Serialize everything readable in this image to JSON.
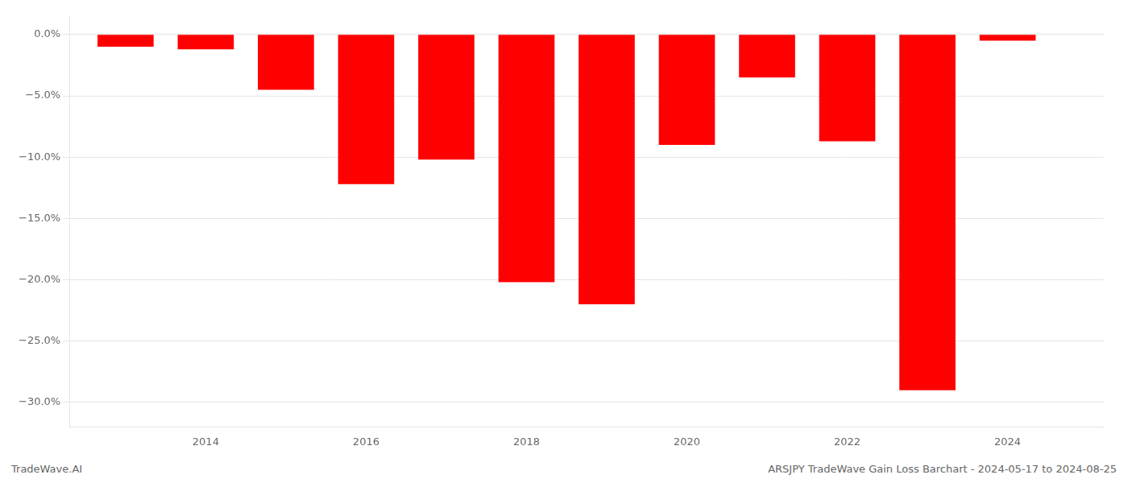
{
  "chart_data": {
    "type": "bar",
    "x": [
      2013,
      2014,
      2015,
      2016,
      2017,
      2018,
      2019,
      2020,
      2021,
      2022,
      2023,
      2024
    ],
    "values": [
      -1.0,
      -1.2,
      -4.5,
      -12.2,
      -10.2,
      -20.2,
      -22.0,
      -9.0,
      -3.5,
      -8.7,
      -29.0,
      -0.5
    ],
    "color": "#ff0000",
    "xlim": [
      2012.3,
      2025.2
    ],
    "xticks": [
      2014,
      2016,
      2018,
      2020,
      2022,
      2024
    ],
    "ylim": [
      -32,
      1.5
    ],
    "yticks": [
      {
        "value": 0.0,
        "label": "0.0%"
      },
      {
        "value": -5.0,
        "label": "−5.0%"
      },
      {
        "value": -10.0,
        "label": "−10.0%"
      },
      {
        "value": -15.0,
        "label": "−15.0%"
      },
      {
        "value": -20.0,
        "label": "−20.0%"
      },
      {
        "value": -25.0,
        "label": "−25.0%"
      },
      {
        "value": -30.0,
        "label": "−30.0%"
      }
    ],
    "grid": true,
    "annotations": [
      "TradeWave.AI",
      "ARSJPY TradeWave Gain Loss Barchart - 2024-05-17 to 2024-08-25"
    ]
  }
}
